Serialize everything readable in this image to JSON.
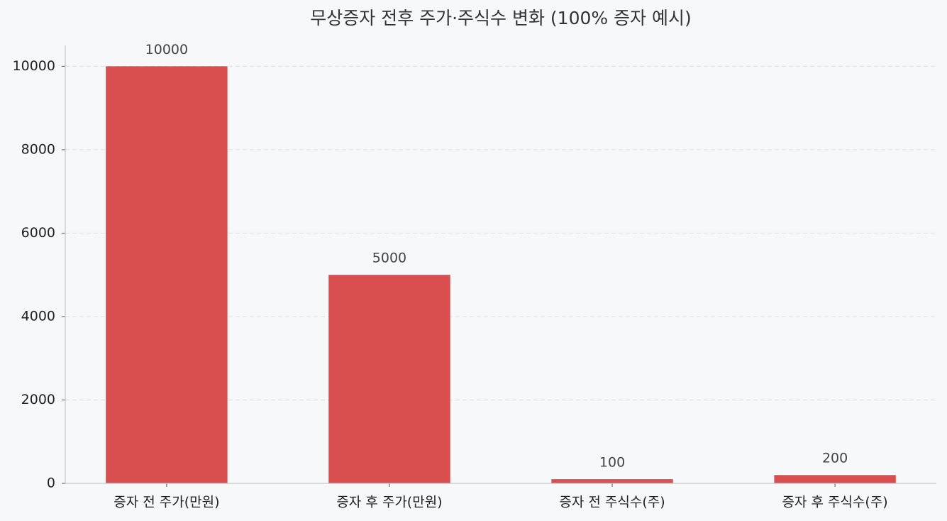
{
  "chart_data": {
    "type": "bar",
    "title": "무상증자 전후 주가·주식수 변화 (100% 증자 예시)",
    "categories": [
      "증자 전 주가(만원)",
      "증자 후 주가(만원)",
      "증자 전 주식수(주)",
      "증자 후 주식수(주)"
    ],
    "values": [
      10000,
      5000,
      100,
      200
    ],
    "color": "#d94f50",
    "ylim": [
      0,
      10500
    ],
    "yticks": [
      0,
      2000,
      4000,
      6000,
      8000,
      10000
    ],
    "grid": true
  }
}
